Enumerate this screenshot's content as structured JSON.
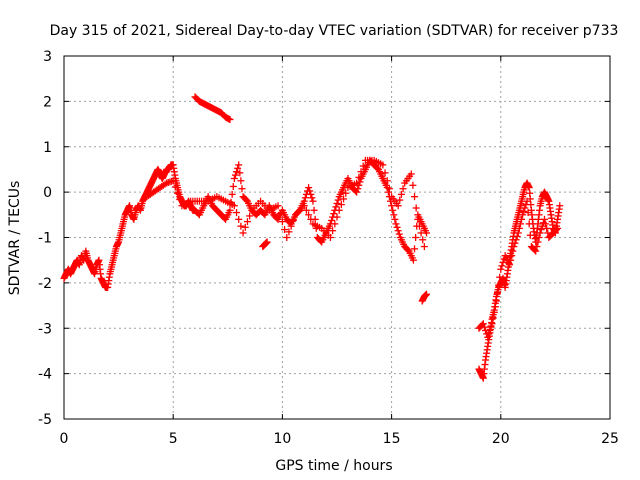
{
  "chart_data": {
    "type": "scatter",
    "title": "Day 315 of 2021, Sidereal Day-to-day VTEC variation (SDTVAR) for receiver p733",
    "xlabel": "GPS time / hours",
    "ylabel": "SDTVAR / TECUs",
    "xlim": [
      0,
      25
    ],
    "ylim": [
      -5,
      3
    ],
    "xticks": [
      "0",
      "5",
      "10",
      "15",
      "20",
      "25"
    ],
    "yticks": [
      "3",
      "2",
      "1",
      "0",
      "-1",
      "-2",
      "-3",
      "-4",
      "-5"
    ],
    "grid": true,
    "marker": "+",
    "color": "#ff0000",
    "series": [
      {
        "name": "main",
        "x": [
          0.0,
          0.1,
          0.2,
          0.3,
          0.4,
          0.5,
          0.6,
          0.7,
          0.8,
          0.9,
          1.0,
          1.1,
          1.2,
          1.3,
          1.4,
          1.5,
          1.6,
          1.7,
          1.8,
          1.9,
          2.0,
          2.1,
          2.2,
          2.3,
          2.4,
          2.5,
          2.6,
          2.7,
          2.8,
          2.9,
          3.0,
          3.1,
          3.2,
          3.3,
          3.4,
          3.5,
          3.6,
          3.7,
          3.8,
          3.9,
          4.0,
          4.1,
          4.2,
          4.3,
          4.4,
          4.5,
          4.6,
          4.7,
          4.8,
          4.9,
          5.0,
          5.1,
          5.2,
          5.3,
          5.4,
          5.5,
          5.6,
          5.7,
          5.8,
          5.9,
          6.0,
          6.2,
          6.4,
          6.6,
          6.8,
          7.0,
          7.2,
          7.4,
          7.6,
          7.8,
          8.0,
          8.2,
          8.4,
          8.6,
          8.8,
          9.0,
          9.2,
          9.4,
          9.6,
          9.8,
          10.0,
          10.2,
          10.4,
          10.6,
          10.8,
          11.0,
          11.2,
          11.4,
          11.6,
          11.8,
          12.0,
          12.2,
          12.4,
          12.6,
          12.8,
          13.0,
          13.2,
          13.4,
          13.6,
          13.8,
          14.0,
          14.2,
          14.4,
          14.6,
          14.8,
          15.0,
          15.2,
          15.4,
          15.6,
          15.8,
          16.0,
          16.2,
          16.4,
          16.6
        ],
        "y": [
          -1.9,
          -1.8,
          -1.7,
          -1.8,
          -1.7,
          -1.6,
          -1.5,
          -1.6,
          -1.4,
          -1.5,
          -1.3,
          -1.5,
          -1.6,
          -1.7,
          -1.8,
          -1.6,
          -1.5,
          -1.9,
          -2.0,
          -2.1,
          -2.1,
          -1.8,
          -1.6,
          -1.4,
          -1.2,
          -1.1,
          -0.9,
          -0.7,
          -0.5,
          -0.4,
          -0.3,
          -0.5,
          -0.6,
          -0.4,
          -0.3,
          -0.4,
          -0.2,
          -0.1,
          0.0,
          0.1,
          0.2,
          0.3,
          0.4,
          0.5,
          0.4,
          0.3,
          0.4,
          0.5,
          0.5,
          0.6,
          0.6,
          0.3,
          0.1,
          -0.1,
          -0.2,
          -0.3,
          -0.3,
          -0.2,
          -0.3,
          -0.4,
          -0.4,
          -0.5,
          -0.3,
          -0.1,
          -0.3,
          -0.4,
          -0.5,
          -0.6,
          -0.4,
          0.3,
          0.6,
          -0.1,
          -0.2,
          -0.4,
          -0.5,
          -0.4,
          -0.5,
          -0.3,
          -0.5,
          -0.6,
          -0.4,
          -0.6,
          -0.7,
          -0.5,
          -0.4,
          -0.2,
          0.1,
          -0.2,
          -1.0,
          -1.1,
          -0.9,
          -0.7,
          -0.4,
          -0.1,
          0.1,
          0.3,
          0.1,
          0.0,
          0.3,
          0.5,
          0.7,
          0.6,
          0.5,
          0.3,
          0.1,
          -0.3,
          -0.7,
          -1.0,
          -1.2,
          -1.3,
          -1.5,
          -0.5,
          -0.7,
          -0.9
        ]
      },
      {
        "name": "upper-segment",
        "x": [
          6.0,
          6.2,
          6.4,
          6.6,
          6.8,
          7.0,
          7.2,
          7.4,
          7.6
        ],
        "y": [
          2.1,
          2.0,
          1.95,
          1.9,
          1.85,
          1.8,
          1.75,
          1.65,
          1.6
        ]
      },
      {
        "name": "branch",
        "x": [
          3.8,
          4.1,
          4.4,
          4.7,
          5.0,
          5.4,
          5.8,
          6.2,
          6.6,
          7.0,
          7.4,
          7.8,
          8.2,
          8.6,
          9.0,
          9.4,
          9.8,
          10.2,
          10.6,
          11.0,
          11.4,
          11.8,
          12.2,
          12.6,
          13.0,
          13.4,
          13.8,
          14.2,
          14.6,
          15.0,
          15.3,
          15.6,
          15.9,
          16.2,
          16.5
        ],
        "y": [
          -0.1,
          0.0,
          0.1,
          0.2,
          0.25,
          -0.3,
          -0.2,
          -0.2,
          -0.2,
          -0.1,
          -0.2,
          -0.3,
          -0.9,
          -0.4,
          -0.2,
          -0.4,
          -0.3,
          -1.0,
          -0.5,
          -0.3,
          -0.7,
          -0.8,
          -1.0,
          -0.4,
          0.1,
          0.2,
          0.7,
          0.7,
          0.6,
          -0.1,
          -0.3,
          0.2,
          0.4,
          -0.6,
          -1.2
        ]
      },
      {
        "name": "isolated",
        "x": [
          9.1,
          9.2,
          9.3,
          16.4,
          16.5,
          16.6
        ],
        "y": [
          -1.2,
          -1.15,
          -1.1,
          -2.4,
          -2.3,
          -2.25
        ]
      },
      {
        "name": "evening",
        "x": [
          19.0,
          19.1,
          19.2,
          19.3,
          19.4,
          19.5,
          19.6,
          19.7,
          19.8,
          19.9,
          20.0,
          20.1,
          20.2,
          20.3,
          20.4,
          20.5,
          20.6,
          20.7,
          20.8,
          20.9,
          21.0,
          21.1,
          21.2,
          21.3,
          21.4,
          21.5,
          21.6,
          21.7,
          21.8,
          21.9,
          22.0,
          22.1,
          22.2,
          22.3,
          22.4,
          22.5,
          22.6,
          22.7
        ],
        "y": [
          -3.9,
          -4.0,
          -4.1,
          -3.7,
          -3.4,
          -3.1,
          -2.8,
          -2.6,
          -2.3,
          -2.1,
          -2.0,
          -1.9,
          -2.1,
          -1.8,
          -1.5,
          -1.2,
          -0.9,
          -0.7,
          -0.5,
          -0.3,
          -0.1,
          0.1,
          0.2,
          0.1,
          -0.4,
          -0.8,
          -1.1,
          -0.7,
          -0.3,
          -0.1,
          0.0,
          -0.1,
          -0.2,
          -0.5,
          -0.8,
          -0.9,
          -0.6,
          -0.3
        ]
      },
      {
        "name": "evening-spread",
        "x": [
          19.0,
          19.2,
          19.4,
          19.6,
          19.8,
          20.0,
          20.2,
          20.4,
          20.6,
          20.8,
          21.0,
          21.2,
          21.4,
          21.6,
          21.8,
          22.0,
          22.2,
          22.4,
          22.6
        ],
        "y": [
          -3.0,
          -2.9,
          -3.2,
          -2.9,
          -2.4,
          -1.7,
          -1.4,
          -1.6,
          -1.2,
          -0.9,
          -0.5,
          -0.2,
          -1.2,
          -1.3,
          -0.9,
          -0.6,
          -1.0,
          -0.9,
          -0.8
        ]
      }
    ]
  }
}
